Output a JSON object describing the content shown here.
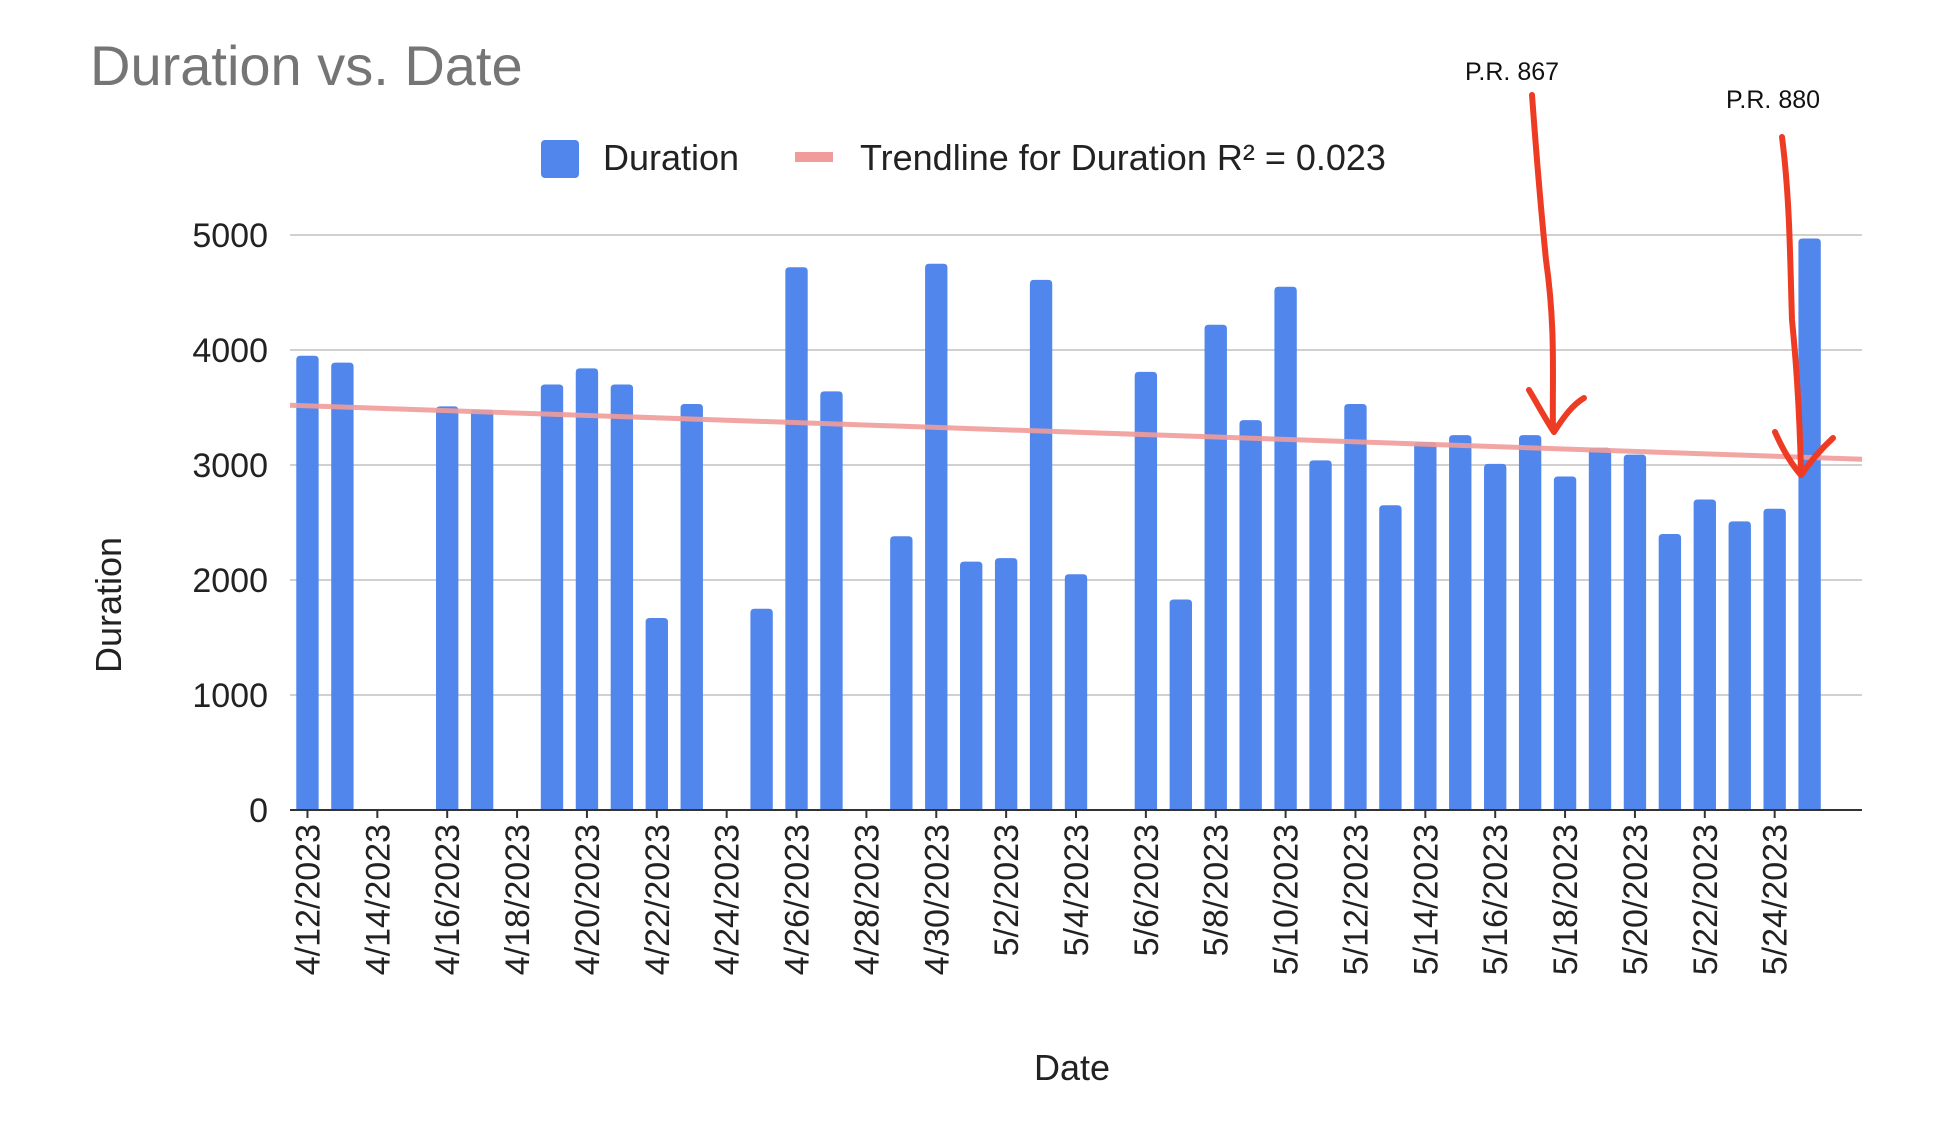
{
  "chart_data": {
    "type": "bar",
    "title": "Duration vs. Date",
    "xlabel": "Date",
    "ylabel": "Duration",
    "ylim": [
      0,
      5000
    ],
    "yticks": [
      0,
      1000,
      2000,
      3000,
      4000,
      5000
    ],
    "grid": true,
    "legend_position": "top",
    "x_tick_labels": [
      "4/12/2023",
      "4/14/2023",
      "4/16/2023",
      "4/18/2023",
      "4/20/2023",
      "4/22/2023",
      "4/24/2023",
      "4/26/2023",
      "4/28/2023",
      "4/30/2023",
      "5/2/2023",
      "5/4/2023",
      "5/6/2023",
      "5/8/2023",
      "5/10/2023",
      "5/12/2023",
      "5/14/2023",
      "5/16/2023",
      "5/18/2023",
      "5/20/2023",
      "5/22/2023",
      "5/24/2023"
    ],
    "dates": [
      "2023-04-12",
      "2023-04-13",
      "2023-04-16",
      "2023-04-17",
      "2023-04-19",
      "2023-04-20",
      "2023-04-21",
      "2023-04-22",
      "2023-04-23",
      "2023-04-25",
      "2023-04-26",
      "2023-04-27",
      "2023-04-29",
      "2023-04-30",
      "2023-05-01",
      "2023-05-02",
      "2023-05-03",
      "2023-05-04",
      "2023-05-06",
      "2023-05-07",
      "2023-05-08",
      "2023-05-09",
      "2023-05-10",
      "2023-05-11",
      "2023-05-12",
      "2023-05-13",
      "2023-05-14",
      "2023-05-15",
      "2023-05-16",
      "2023-05-17",
      "2023-05-18",
      "2023-05-19",
      "2023-05-20",
      "2023-05-21",
      "2023-05-22",
      "2023-05-23",
      "2023-05-24",
      "2023-05-25"
    ],
    "series": [
      {
        "name": "Duration",
        "color": "#5186ec",
        "values": [
          3950,
          3890,
          3510,
          3480,
          3700,
          3840,
          3700,
          1670,
          3530,
          1750,
          4720,
          3640,
          2380,
          4750,
          2160,
          2190,
          4610,
          2050,
          3810,
          1830,
          4220,
          3390,
          4550,
          3040,
          3530,
          2650,
          3200,
          3260,
          3010,
          3260,
          2900,
          3150,
          3090,
          2400,
          2700,
          2510,
          2620,
          4970
        ]
      }
    ],
    "trendline": {
      "name": "Trendline for Duration R² = 0.023",
      "color": "#ef9c9a",
      "start_value": 3520,
      "end_value": 3050
    },
    "annotations": [
      {
        "text": "P.R. 867",
        "date": "2023-05-17",
        "color": "#ee3b23"
      },
      {
        "text": "P.R. 880",
        "date": "2023-05-24",
        "color": "#ee3b23"
      }
    ]
  }
}
